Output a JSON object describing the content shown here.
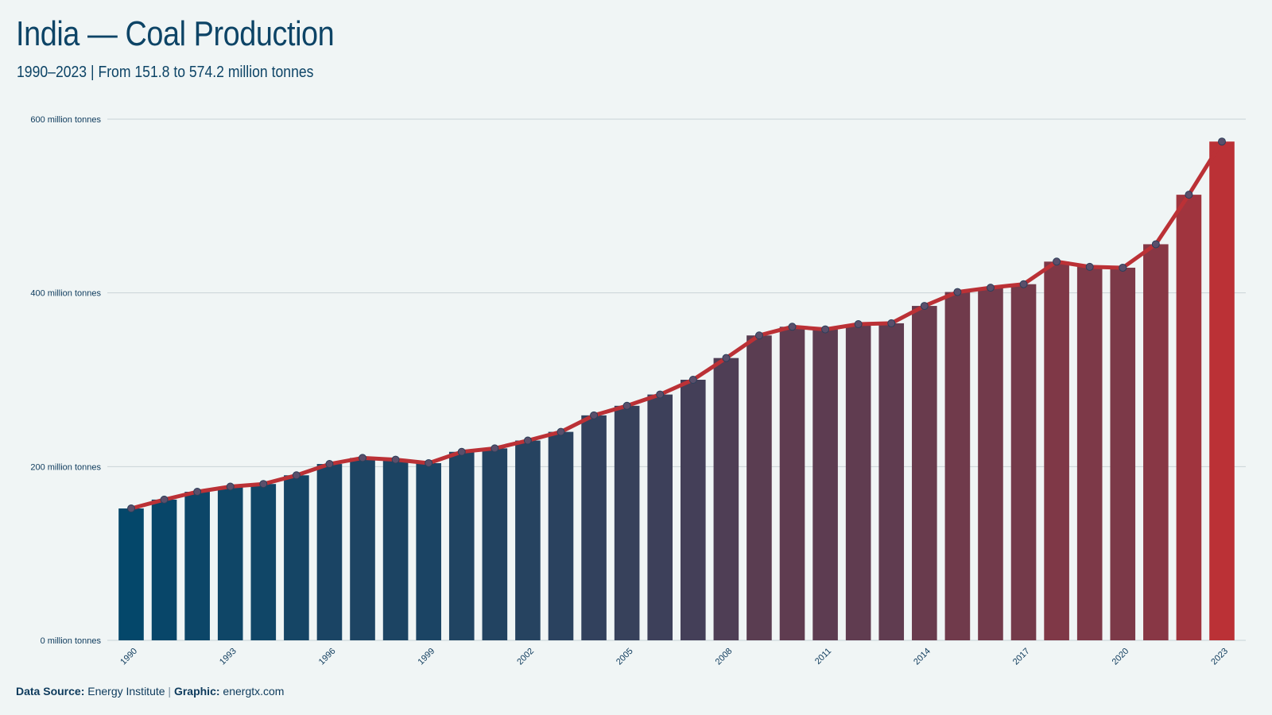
{
  "header": {
    "title": "India — Coal Production",
    "subtitle": "1990–2023 | From 151.8 to 574.2 million tonnes"
  },
  "footer": {
    "source_label": "Data Source:",
    "source_value": "Energy Institute",
    "separator": "|",
    "graphic_label": "Graphic:",
    "graphic_value": "energtx.com"
  },
  "colors": {
    "background": "#f0f5f5",
    "bar_start": "#04476a",
    "bar_end": "#bb3136",
    "line": "#bb3136",
    "marker_fill": "#5a4f6b",
    "grid": "#c9d3d6",
    "text": "#0d4466"
  },
  "chart_data": {
    "type": "bar",
    "title": "India — Coal Production",
    "subtitle": "1990–2023 | From 151.8 to 574.2 million tonnes",
    "xlabel": "",
    "ylabel": "",
    "ylim": [
      0,
      600
    ],
    "yticks": [
      0,
      200,
      400,
      600
    ],
    "ytick_labels": [
      "0 million tonnes",
      "200 million tonnes",
      "400 million tonnes",
      "600 million tonnes"
    ],
    "xtick_labels": [
      "1990",
      "1993",
      "1996",
      "1999",
      "2002",
      "2005",
      "2008",
      "2011",
      "2014",
      "2017",
      "2020",
      "2023"
    ],
    "grid": true,
    "overlay": "line with markers tracing bar values",
    "categories": [
      "1990",
      "1991",
      "1992",
      "1993",
      "1994",
      "1995",
      "1996",
      "1997",
      "1998",
      "1999",
      "2000",
      "2001",
      "2002",
      "2003",
      "2004",
      "2005",
      "2006",
      "2007",
      "2008",
      "2009",
      "2010",
      "2011",
      "2012",
      "2013",
      "2014",
      "2015",
      "2016",
      "2017",
      "2018",
      "2019",
      "2020",
      "2021",
      "2022",
      "2023"
    ],
    "values": [
      151.8,
      162,
      171,
      177,
      180,
      190,
      203,
      210,
      208,
      204,
      217,
      221,
      230,
      240,
      259,
      270,
      283,
      300,
      325,
      351,
      361,
      358,
      364,
      365,
      385,
      401,
      406,
      410,
      436,
      430,
      429,
      456,
      513,
      574.2
    ]
  }
}
